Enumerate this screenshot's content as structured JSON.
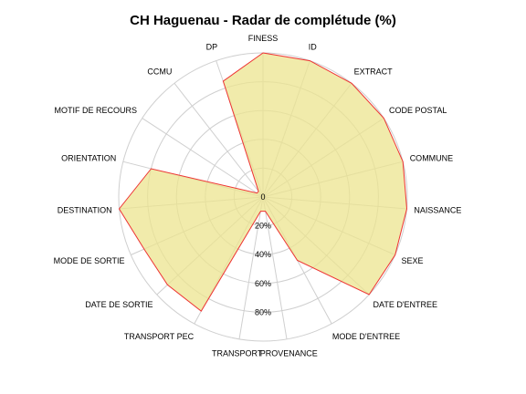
{
  "chart_data": {
    "type": "radar",
    "title": "CH Haguenau - Radar de complétude (%)",
    "categories": [
      "FINESS",
      "ID",
      "EXTRACT",
      "CODE POSTAL",
      "COMMUNE",
      "NAISSANCE",
      "SEXE",
      "DATE D'ENTREE",
      "MODE D'ENTREE",
      "PROVENANCE",
      "TRANSPORT",
      "TRANSPORT PEC",
      "DATE DE SORTIE",
      "MODE DE SORTIE",
      "DESTINATION",
      "ORIENTATION",
      "MOTIF DE RECOURS",
      "CCMU",
      "DP"
    ],
    "values": [
      100,
      100,
      100,
      100,
      100,
      100,
      100,
      100,
      50,
      10,
      10,
      90,
      90,
      90,
      100,
      80,
      5,
      5,
      85
    ],
    "radial_ticks": [
      "0",
      "20%",
      "40%",
      "60%",
      "80%"
    ],
    "rlim": [
      0,
      100
    ],
    "grid": true,
    "colors": {
      "fill": "#ece48f",
      "stroke": "#ee3333",
      "grid": "#cfcfcf"
    }
  }
}
